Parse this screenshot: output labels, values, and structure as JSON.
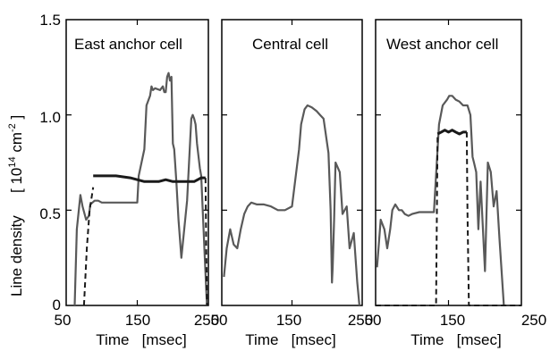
{
  "ylabel_main": "Line density",
  "ylabel_unit_open": "[ 10",
  "ylabel_unit_exp1": "14",
  "ylabel_unit_mid": " cm",
  "ylabel_unit_exp2": "-2",
  "ylabel_unit_close": " ]",
  "colors": {
    "gray_trace": "#595959",
    "black_trace": "#1a1a1a",
    "frame": "#000000"
  },
  "chart_data": [
    {
      "type": "line",
      "title": "East anchor cell",
      "xlabel": "Time   [msec]",
      "ylabel": "Line density",
      "xlim": [
        50,
        250
      ],
      "ylim": [
        0,
        1.5
      ],
      "xticks": [
        "50",
        "150",
        "250"
      ],
      "yticks": [
        "0",
        "0.5",
        "1.0",
        "1.5"
      ],
      "series": [
        {
          "style": "solid-gray",
          "x": [
            62,
            65,
            70,
            73,
            78,
            82,
            84,
            90,
            95,
            100,
            105,
            120,
            140,
            150,
            152,
            160,
            163,
            168,
            170,
            172,
            175,
            182,
            186,
            188,
            190,
            192,
            194,
            196,
            198,
            200,
            202,
            205,
            208,
            212,
            220,
            226,
            228,
            230,
            232,
            234,
            238,
            240,
            245,
            248
          ],
          "y": [
            0,
            0.4,
            0.58,
            0.52,
            0.45,
            0.47,
            0.53,
            0.55,
            0.55,
            0.54,
            0.54,
            0.54,
            0.54,
            0.54,
            0.68,
            0.82,
            1.05,
            1.1,
            1.15,
            1.13,
            1.14,
            1.13,
            1.15,
            1.12,
            1.12,
            1.2,
            1.22,
            1.18,
            1.2,
            0.85,
            0.82,
            0.65,
            0.45,
            0.25,
            0.55,
            0.98,
            1.0,
            0.98,
            0.95,
            0.85,
            0.72,
            0.68,
            0.25,
            0
          ]
        },
        {
          "style": "solid-black",
          "x": [
            88,
            100,
            120,
            140,
            150,
            160,
            170,
            180,
            190,
            200,
            210,
            220,
            230,
            240,
            246
          ],
          "y": [
            0.68,
            0.68,
            0.68,
            0.67,
            0.66,
            0.65,
            0.65,
            0.65,
            0.66,
            0.65,
            0.65,
            0.65,
            0.65,
            0.67,
            0.67
          ]
        },
        {
          "style": "dashed-black",
          "x": [
            75,
            79,
            83,
            88
          ],
          "y": [
            0,
            0.3,
            0.5,
            0.62
          ]
        },
        {
          "style": "dashed-black",
          "x": [
            246,
            247,
            248
          ],
          "y": [
            0.67,
            0.3,
            0
          ]
        }
      ]
    },
    {
      "type": "line",
      "title": "Central cell",
      "xlabel": "Time   [msec]",
      "xlim": [
        50,
        250
      ],
      "ylim": [
        0,
        1.5
      ],
      "xticks": [
        "50",
        "150",
        "250"
      ],
      "series": [
        {
          "style": "solid-gray",
          "x": [
            53,
            57,
            62,
            67,
            72,
            77,
            82,
            87,
            92,
            100,
            110,
            120,
            130,
            140,
            150,
            160,
            163,
            168,
            172,
            178,
            185,
            190,
            195,
            202,
            205,
            207,
            208,
            210,
            212,
            218,
            222,
            228,
            232,
            238,
            243,
            246
          ],
          "y": [
            0.15,
            0.3,
            0.4,
            0.32,
            0.3,
            0.4,
            0.48,
            0.52,
            0.54,
            0.53,
            0.53,
            0.52,
            0.5,
            0.5,
            0.52,
            0.82,
            0.95,
            1.03,
            1.05,
            1.04,
            1.02,
            1.0,
            0.98,
            0.8,
            0.5,
            0.12,
            0.2,
            0.45,
            0.75,
            0.7,
            0.48,
            0.52,
            0.3,
            0.38,
            0.12,
            0
          ]
        }
      ]
    },
    {
      "type": "line",
      "title": "West anchor cell",
      "xlabel": "Time   [msec]",
      "xlim": [
        50,
        250
      ],
      "ylim": [
        0,
        1.5
      ],
      "xticks": [
        "50",
        "150",
        "250"
      ],
      "series": [
        {
          "style": "solid-gray",
          "x": [
            52,
            57,
            62,
            66,
            70,
            73,
            77,
            82,
            86,
            90,
            95,
            100,
            110,
            120,
            130,
            137,
            142,
            148,
            151,
            155,
            160,
            165,
            170,
            176,
            180,
            183,
            185,
            188,
            191,
            194,
            197,
            200,
            204,
            208,
            212,
            216,
            220,
            226
          ],
          "y": [
            0.2,
            0.45,
            0.4,
            0.3,
            0.4,
            0.5,
            0.53,
            0.5,
            0.5,
            0.48,
            0.47,
            0.48,
            0.49,
            0.49,
            0.49,
            0.95,
            1.05,
            1.08,
            1.1,
            1.1,
            1.08,
            1.07,
            1.05,
            1.05,
            1.0,
            0.78,
            0.75,
            0.7,
            0.4,
            0.65,
            0.42,
            0.18,
            0.75,
            0.7,
            0.52,
            0.6,
            0.35,
            0
          ]
        },
        {
          "style": "solid-black",
          "x": [
            135,
            140,
            145,
            150,
            155,
            160,
            165,
            170,
            175
          ],
          "y": [
            0.9,
            0.91,
            0.92,
            0.91,
            0.92,
            0.91,
            0.9,
            0.91,
            0.91
          ]
        },
        {
          "style": "dashed-black",
          "x": [
            50,
            75,
            100,
            125,
            133,
            135
          ],
          "y": [
            0,
            0,
            0,
            0,
            0,
            0.9
          ]
        },
        {
          "style": "dashed-black",
          "x": [
            175,
            176,
            178,
            200,
            226,
            250
          ],
          "y": [
            0.91,
            0.5,
            0,
            0,
            0,
            0
          ]
        }
      ]
    }
  ]
}
